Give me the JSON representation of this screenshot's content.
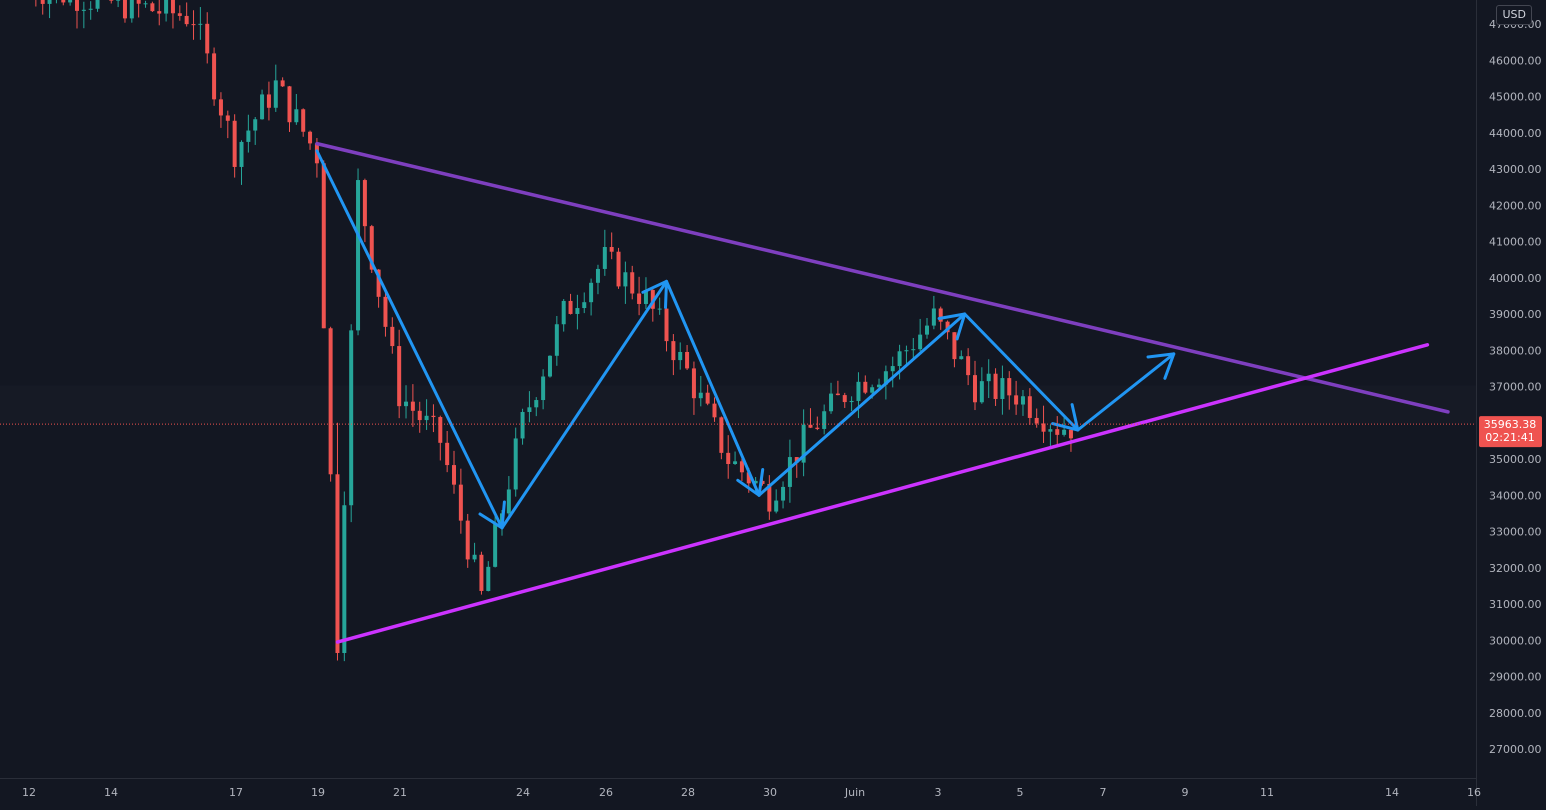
{
  "currency": "USD",
  "current_price_label": "35963.38",
  "countdown_label": "02:21:41",
  "colors": {
    "background": "#131722",
    "up_candle": "#26a69a",
    "down_candle": "#ef5350",
    "resistance_line": "#7e3fbf",
    "support_line": "#cc33ff",
    "projection_arrows": "#2196f3",
    "price_line": "#ef5350"
  },
  "chart_data": {
    "type": "candlestick",
    "instrument_quote_currency": "USD",
    "interval": "4h (approx.)",
    "x_ticks": [
      "12",
      "14",
      "17",
      "19",
      "21",
      "24",
      "26",
      "28",
      "30",
      "Juin",
      "3",
      "5",
      "7",
      "9",
      "11",
      "14",
      "16"
    ],
    "y_ticks": [
      "27000.00",
      "28000.00",
      "29000.00",
      "30000.00",
      "31000.00",
      "32000.00",
      "33000.00",
      "34000.00",
      "35000.00",
      "36000.00",
      "37000.00",
      "38000.00",
      "39000.00",
      "40000.00",
      "41000.00",
      "42000.00",
      "43000.00",
      "44000.00",
      "45000.00",
      "46000.00",
      "47000.00"
    ],
    "ylim": [
      26400,
      48000
    ],
    "current_price": 35963.38,
    "pivots": [
      {
        "date": "May 12",
        "price": 48000
      },
      {
        "date": "May 16",
        "price": 47200
      },
      {
        "date": "May 17",
        "price": 43500
      },
      {
        "date": "May 18",
        "price": 45300
      },
      {
        "date": "May 19",
        "price": 43400
      },
      {
        "date": "May 19 12:00",
        "price": 30000
      },
      {
        "date": "May 20",
        "price": 42500
      },
      {
        "date": "May 21",
        "price": 36800
      },
      {
        "date": "May 22",
        "price": 35500
      },
      {
        "date": "May 23",
        "price": 31200
      },
      {
        "date": "May 24",
        "price": 36000
      },
      {
        "date": "May 25",
        "price": 39000
      },
      {
        "date": "May 26",
        "price": 40500
      },
      {
        "date": "May 27",
        "price": 39400
      },
      {
        "date": "May 28",
        "price": 37400
      },
      {
        "date": "May 29",
        "price": 35000
      },
      {
        "date": "May 30",
        "price": 34000
      },
      {
        "date": "May 31",
        "price": 35800
      },
      {
        "date": "Jun 1",
        "price": 37000
      },
      {
        "date": "Jun 2",
        "price": 37600
      },
      {
        "date": "Jun 3",
        "price": 38900
      },
      {
        "date": "Jun 4",
        "price": 37000
      },
      {
        "date": "Jun 5",
        "price": 36800
      },
      {
        "date": "Jun 6",
        "price": 35900
      }
    ],
    "trend_lines": [
      {
        "name": "resistance",
        "from": {
          "date": "May 19",
          "price": 43700
        },
        "to": {
          "date": "Jun 15 12:00",
          "price": 36300
        }
      },
      {
        "name": "support",
        "from": {
          "date": "May 19 12:00",
          "price": 29950
        },
        "to": {
          "date": "Jun 15",
          "price": 38150
        }
      }
    ],
    "projection_path": [
      {
        "date": "May 19",
        "price": 43500
      },
      {
        "date": "May 23 12:00",
        "price": 33100
      },
      {
        "date": "May 27 12:00",
        "price": 39900
      },
      {
        "date": "May 29 18:00",
        "price": 34000
      },
      {
        "date": "Jun 3 18:00",
        "price": 39000
      },
      {
        "date": "Jun 6 12:00",
        "price": 35800
      },
      {
        "date": "Jun 8 20:00",
        "price": 37900
      }
    ]
  }
}
